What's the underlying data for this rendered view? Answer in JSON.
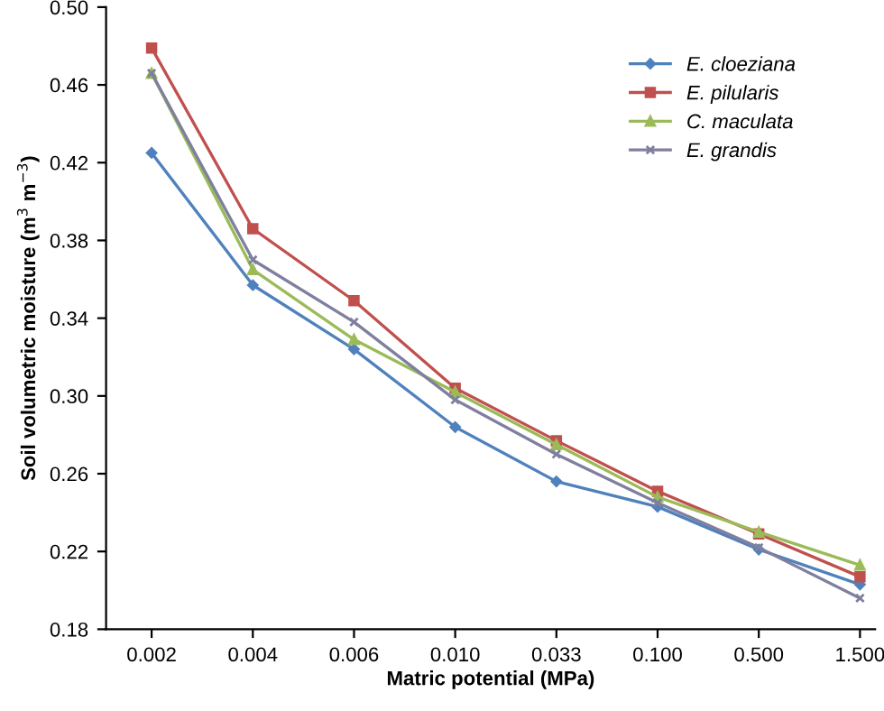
{
  "chart_data": {
    "type": "line",
    "xlabel": "Matric potential (MPa)",
    "ylabel": "Soil volumetric moisture (m$^{3}$ m$^{−3}$)",
    "categories": [
      "0.002",
      "0.004",
      "0.006",
      "0.010",
      "0.033",
      "0.100",
      "0.500",
      "1.500"
    ],
    "ylim": [
      0.18,
      0.5
    ],
    "yticks": [
      0.18,
      0.22,
      0.26,
      {
        "value": 0.3,
        "label": "0.30"
      },
      0.34,
      0.38,
      0.42,
      0.46,
      {
        "value": 0.5,
        "label": "0.50"
      }
    ],
    "grid": false,
    "legend": "top right",
    "line_style": "solid",
    "series": [
      {
        "name": "E. cloeziana",
        "color": "#4f81bd",
        "marker": "diamond",
        "values": [
          0.425,
          0.357,
          0.324,
          0.284,
          0.256,
          0.243,
          0.221,
          0.203
        ]
      },
      {
        "name": "E. pilularis",
        "color": "#c0504d",
        "marker": "square",
        "values": [
          0.479,
          0.386,
          0.349,
          0.304,
          0.277,
          0.251,
          0.229,
          0.207
        ]
      },
      {
        "name": "C. maculata",
        "color": "#9bbb59",
        "marker": "triangle",
        "values": [
          0.466,
          0.365,
          0.329,
          0.302,
          0.275,
          0.248,
          0.23,
          0.213
        ]
      },
      {
        "name": "E. grandis",
        "color": "#7f7f9f",
        "marker": "cross",
        "values": [
          0.466,
          0.37,
          0.338,
          0.298,
          0.27,
          0.245,
          0.222,
          0.196
        ]
      }
    ]
  }
}
